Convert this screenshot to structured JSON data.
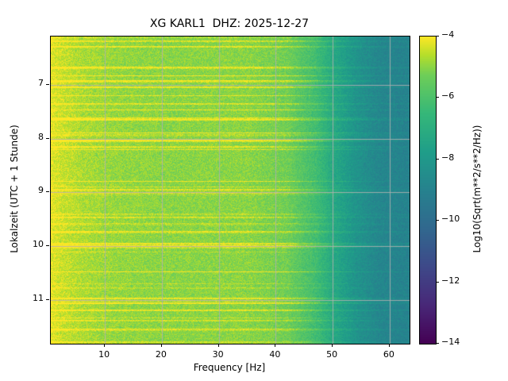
{
  "chart_data": {
    "type": "heatmap",
    "title": "XG KARL1  DHZ: 2025-12-27",
    "xlabel": "Frequency [Hz]",
    "ylabel": "Lokalzeit (UTC + 1 Stunde)",
    "x_range_hz": [
      0.5,
      63.5
    ],
    "y_range_hours": [
      6.1,
      11.82
    ],
    "x_ticks": [
      {
        "v": 10,
        "label": "10"
      },
      {
        "v": 20,
        "label": "20"
      },
      {
        "v": 30,
        "label": "30"
      },
      {
        "v": 40,
        "label": "40"
      },
      {
        "v": 50,
        "label": "50"
      },
      {
        "v": 60,
        "label": "60"
      }
    ],
    "y_ticks": [
      {
        "v": 7,
        "label": "7"
      },
      {
        "v": 8,
        "label": "8"
      },
      {
        "v": 9,
        "label": "9"
      },
      {
        "v": 10,
        "label": "10"
      },
      {
        "v": 11,
        "label": "11"
      }
    ],
    "grid": true,
    "grid_color": "#b0b0b0",
    "background_color": "#ffffff",
    "colorbar": {
      "label": "Log10(Sqrt(m**2/s**2/Hz))",
      "vmin": -14,
      "vmax": -4,
      "ticks": [
        {
          "v": -4,
          "label": "−4"
        },
        {
          "v": -6,
          "label": "−6"
        },
        {
          "v": -8,
          "label": "−8"
        },
        {
          "v": -10,
          "label": "−10"
        },
        {
          "v": -12,
          "label": "−12"
        },
        {
          "v": -14,
          "label": "−14"
        }
      ],
      "cmap": "viridis",
      "cmap_stops": [
        {
          "t": 0.0,
          "c": "#440154"
        },
        {
          "t": 0.125,
          "c": "#482878"
        },
        {
          "t": 0.25,
          "c": "#3e4989"
        },
        {
          "t": 0.375,
          "c": "#31688e"
        },
        {
          "t": 0.5,
          "c": "#26828e"
        },
        {
          "t": 0.625,
          "c": "#1f9e89"
        },
        {
          "t": 0.75,
          "c": "#35b779"
        },
        {
          "t": 0.875,
          "c": "#6ece58"
        },
        {
          "t": 0.94,
          "c": "#b5de2b"
        },
        {
          "t": 1.0,
          "c": "#fde725"
        }
      ]
    },
    "spectrum_profile": [
      {
        "f": 0.5,
        "v": -4.2
      },
      {
        "f": 2,
        "v": -4.4
      },
      {
        "f": 6,
        "v": -4.7
      },
      {
        "f": 12,
        "v": -4.9
      },
      {
        "f": 20,
        "v": -5.0
      },
      {
        "f": 35,
        "v": -5.0
      },
      {
        "f": 42,
        "v": -5.3
      },
      {
        "f": 47,
        "v": -6.2
      },
      {
        "f": 50,
        "v": -7.2
      },
      {
        "f": 54,
        "v": -8.2
      },
      {
        "f": 58,
        "v": -8.8
      },
      {
        "f": 63.5,
        "v": -9.0
      }
    ],
    "noise_amplitude": 0.9,
    "noise_seed": 27,
    "event_stripes": {
      "density": 0.12,
      "boost_min": 0.35,
      "boost_max": 1.25,
      "max_rows": 3,
      "fade_start_hz": 44,
      "fade_end_hz": 60,
      "fade_min": 0.35
    }
  }
}
